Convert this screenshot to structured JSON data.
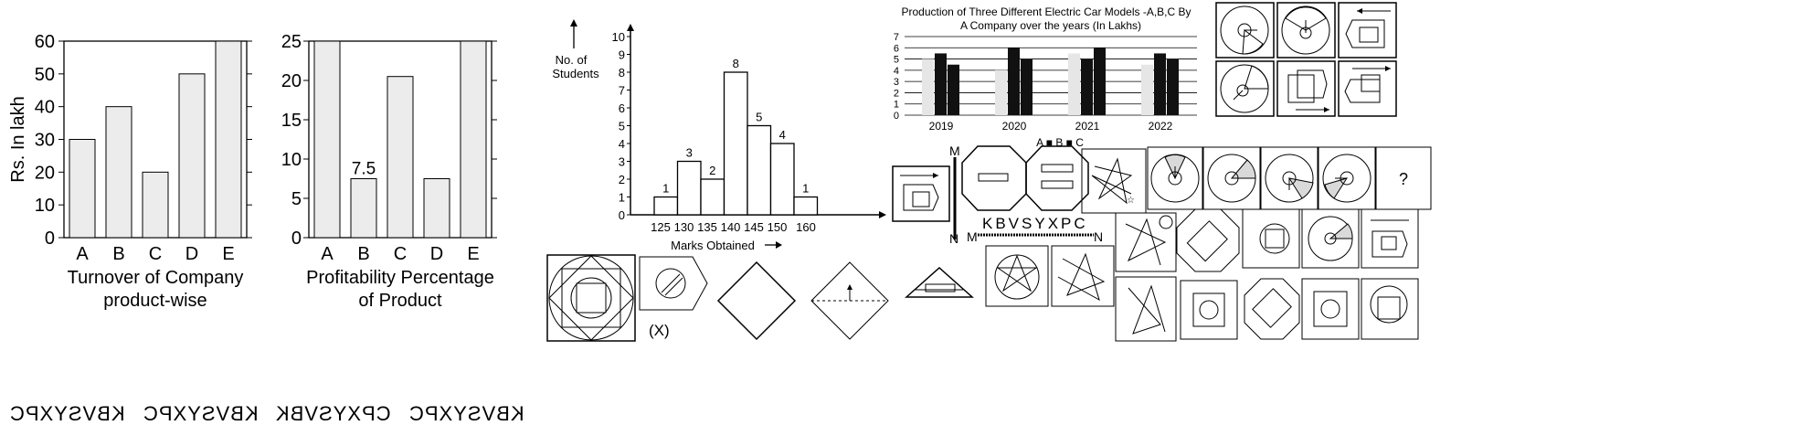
{
  "chart_turnover": {
    "type": "bar",
    "categories": [
      "A",
      "B",
      "C",
      "D",
      "E"
    ],
    "values": [
      30,
      40,
      20,
      50,
      60
    ],
    "ylabel": "Rs. In lakh",
    "xlabel_line1": "Turnover of Company",
    "xlabel_line2": "product-wise",
    "ylim": [
      0,
      60
    ],
    "yticks": [
      "0",
      "10",
      "20",
      "30",
      "40",
      "50",
      "60"
    ]
  },
  "chart_profit": {
    "type": "bar",
    "categories": [
      "A",
      "B",
      "C",
      "D",
      "E"
    ],
    "values": [
      25,
      7.5,
      20.5,
      7.5,
      25
    ],
    "annotation": "7.5",
    "xlabel_line1": "Profitability Percentage",
    "xlabel_line2": "of Product",
    "ylim": [
      0,
      25
    ],
    "yticks": [
      "0",
      "5",
      "10",
      "15",
      "20",
      "25"
    ]
  },
  "chart_marks": {
    "type": "bar",
    "categories": [
      "125",
      "130",
      "135",
      "140",
      "145",
      "150",
      "160"
    ],
    "values": [
      1,
      3,
      2,
      8,
      5,
      4,
      1
    ],
    "ylabel_line1": "No. of",
    "ylabel_line2": "Students",
    "xlabel": "Marks Obtained",
    "ylim": [
      0,
      10
    ],
    "yticks": [
      "0",
      "1",
      "2",
      "3",
      "4",
      "5",
      "6",
      "7",
      "8",
      "9",
      "10"
    ]
  },
  "chart_cars": {
    "type": "bar",
    "title_line1": "Production of Three Different Electric Car Models -A,B,C By",
    "title_line2": "A Company over the years (In Lakhs)",
    "categories": [
      "2019",
      "2020",
      "2021",
      "2022"
    ],
    "series": [
      {
        "name": "A",
        "values": [
          5,
          4,
          5.5,
          4.5
        ],
        "color": "#e6e6e6"
      },
      {
        "name": "B",
        "values": [
          5.5,
          6,
          5,
          5.5
        ],
        "color": "#111111"
      },
      {
        "name": "C",
        "values": [
          4.5,
          5,
          6,
          5
        ],
        "color": "#111111"
      }
    ],
    "ylim": [
      0,
      7
    ],
    "yticks": [
      "0",
      "1",
      "2",
      "3",
      "4",
      "5",
      "6",
      "7"
    ],
    "legend": "A ■ B ■ C"
  },
  "mirror_text": {
    "word": "KBVSYXPC",
    "labels": [
      "N",
      "M",
      "M",
      "N"
    ],
    "options": [
      "KBVSYXPC",
      "CPXYSVBK",
      "KBVSYXPC",
      "KBVSYXPC"
    ]
  },
  "misc": {
    "x_label": "(X)",
    "question_mark": "?"
  }
}
